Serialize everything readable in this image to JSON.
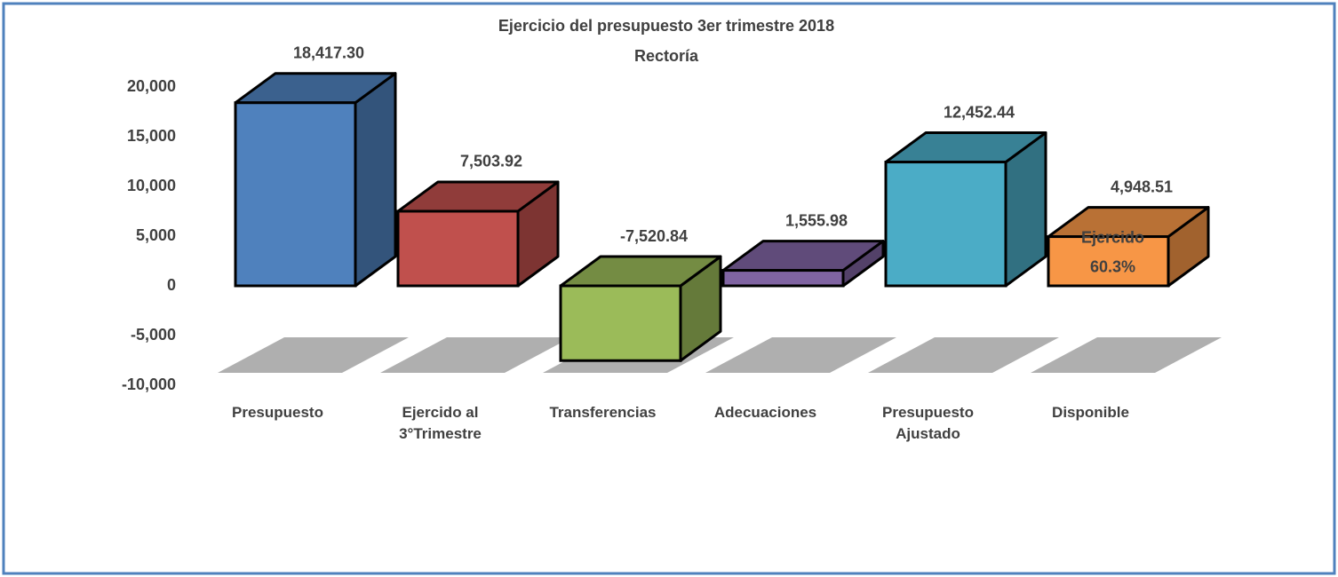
{
  "chart_data": {
    "type": "bar3d",
    "title": "Ejercicio del presupuesto 3er trimestre 2018",
    "subtitle": "Rectoría",
    "categories": [
      "Presupuesto",
      "Ejercido al 3°Trimestre",
      "Transferencias",
      "Adecuaciones",
      "Presupuesto Ajustado",
      "Disponible"
    ],
    "values": [
      18417.3,
      7503.92,
      -7520.84,
      1555.98,
      12452.44,
      4948.51
    ],
    "value_labels": [
      "18,417.30",
      "7,503.92",
      "-7,520.84",
      "1,555.98",
      "12,452.44",
      "4,948.51"
    ],
    "value_label_colors": [
      "#404040",
      "#404040",
      "#c0504d",
      "#404040",
      "#404040",
      "#404040"
    ],
    "colors": [
      "#4f81bd",
      "#c0504d",
      "#9bbb59",
      "#8064a2",
      "#4bacc6",
      "#f79646"
    ],
    "annotations": [
      "Ejercido",
      "60.3%"
    ],
    "ylim": [
      -10000,
      20000
    ],
    "yticks": [
      {
        "value": -10000,
        "label": "-10,000"
      },
      {
        "value": -5000,
        "label": "-5,000"
      },
      0,
      {
        "value": 5000,
        "label": "5,000"
      },
      {
        "value": 10000,
        "label": "10,000"
      },
      {
        "value": 15000,
        "label": "15,000"
      },
      {
        "value": 20000,
        "label": "20,000"
      }
    ],
    "grid": false
  }
}
